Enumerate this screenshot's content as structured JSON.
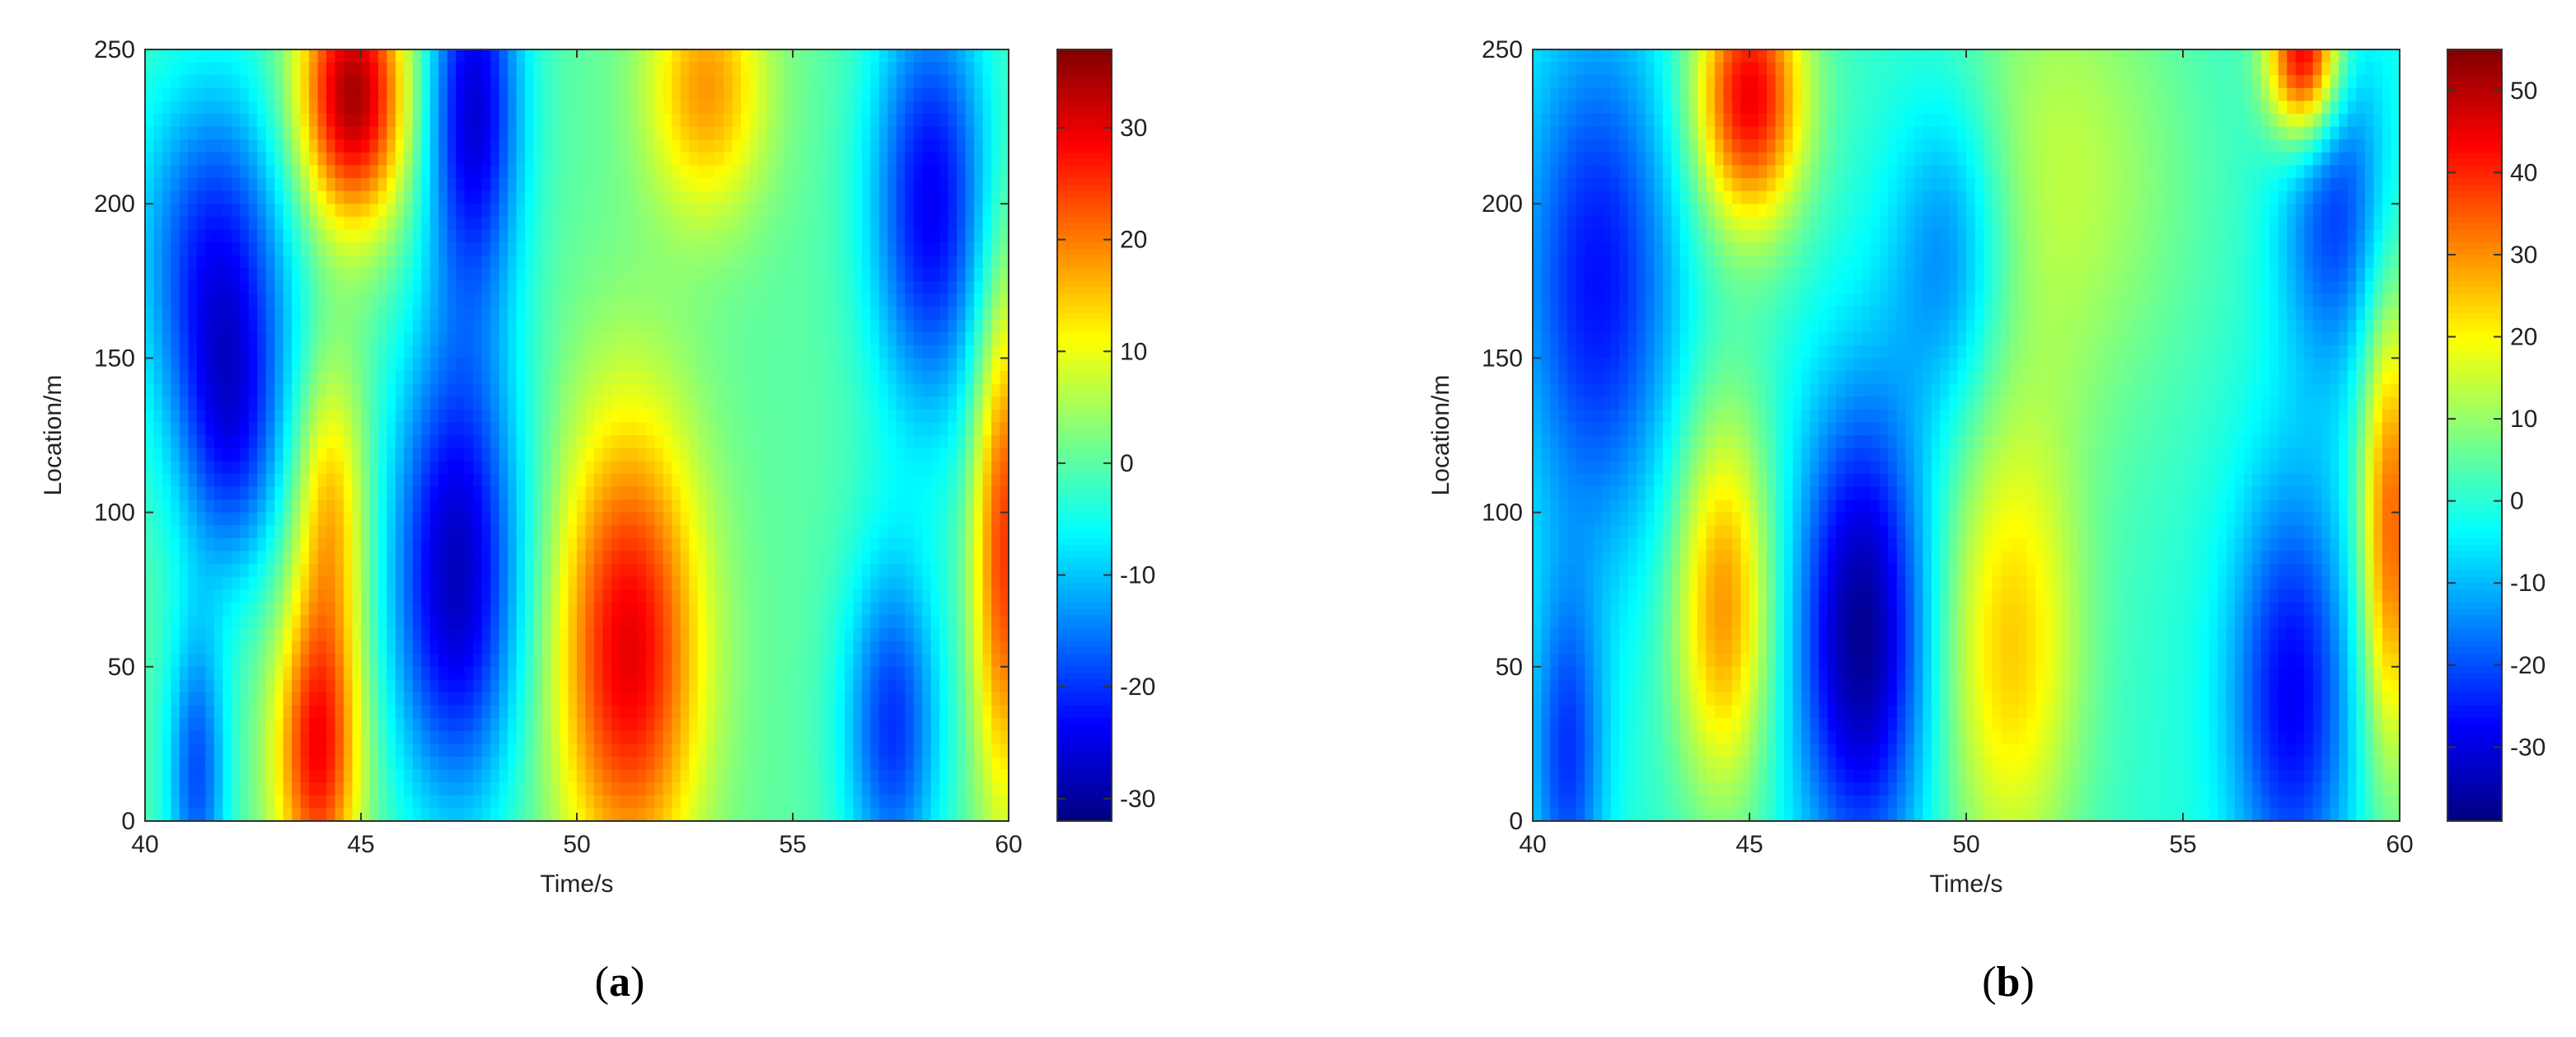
{
  "chart_data": [
    {
      "type": "heatmap",
      "panel_label": "a",
      "xlabel": "Time/s",
      "ylabel": "Location/m",
      "xlim": [
        40,
        60
      ],
      "ylim": [
        0,
        250
      ],
      "xticks": [
        "40",
        "45",
        "50",
        "55",
        "60"
      ],
      "yticks": [
        "0",
        "50",
        "100",
        "150",
        "200",
        "250"
      ],
      "colorbar": {
        "range": [
          -32,
          37
        ],
        "ticks": [
          "-30",
          "-20",
          "-10",
          "0",
          "10",
          "20",
          "30"
        ],
        "tick_values": [
          -30,
          -20,
          -10,
          0,
          10,
          20,
          30
        ],
        "colormap": "jet"
      },
      "blobs": [
        {
          "t": 44.8,
          "x": 235,
          "value": 35,
          "st": 0.9,
          "sx": 30
        },
        {
          "t": 53.0,
          "x": 238,
          "value": 18,
          "st": 1.0,
          "sx": 30
        },
        {
          "t": 47.6,
          "x": 232,
          "value": -26,
          "st": 0.8,
          "sx": 45
        },
        {
          "t": 41.6,
          "x": 185,
          "value": -20,
          "st": 1.3,
          "sx": 42
        },
        {
          "t": 42.0,
          "x": 125,
          "value": -18,
          "st": 0.9,
          "sx": 35
        },
        {
          "t": 44.0,
          "x": 22,
          "value": 28,
          "st": 0.7,
          "sx": 35
        },
        {
          "t": 44.3,
          "x": 100,
          "value": 16,
          "st": 0.6,
          "sx": 35
        },
        {
          "t": 47.2,
          "x": 80,
          "value": -28,
          "st": 1.1,
          "sx": 55
        },
        {
          "t": 51.2,
          "x": 55,
          "value": 30,
          "st": 1.2,
          "sx": 55
        },
        {
          "t": 58.2,
          "x": 200,
          "value": -24,
          "st": 1.0,
          "sx": 50
        },
        {
          "t": 57.3,
          "x": 30,
          "value": -20,
          "st": 0.8,
          "sx": 40
        },
        {
          "t": 59.9,
          "x": 90,
          "value": 25,
          "st": 0.5,
          "sx": 60
        },
        {
          "t": 41.2,
          "x": 15,
          "value": -18,
          "st": 0.5,
          "sx": 35
        }
      ]
    },
    {
      "type": "heatmap",
      "panel_label": "b",
      "xlabel": "Time/s",
      "ylabel": "Location/m",
      "xlim": [
        40,
        60
      ],
      "ylim": [
        0,
        250
      ],
      "xticks": [
        "40",
        "45",
        "50",
        "55",
        "60"
      ],
      "yticks": [
        "0",
        "50",
        "100",
        "150",
        "200",
        "250"
      ],
      "colorbar": {
        "range": [
          -39,
          55
        ],
        "ticks": [
          "-30",
          "-20",
          "-10",
          "0",
          "10",
          "20",
          "30",
          "40",
          "50"
        ],
        "tick_values": [
          -30,
          -20,
          -10,
          0,
          10,
          20,
          30,
          40,
          50
        ],
        "colormap": "jet"
      },
      "blobs": [
        {
          "t": 45.0,
          "x": 235,
          "value": 45,
          "st": 0.9,
          "sx": 30
        },
        {
          "t": 57.8,
          "x": 248,
          "value": 50,
          "st": 0.6,
          "sx": 20
        },
        {
          "t": 52.0,
          "x": 210,
          "value": 14,
          "st": 2.2,
          "sx": 60
        },
        {
          "t": 41.5,
          "x": 175,
          "value": -26,
          "st": 1.3,
          "sx": 60
        },
        {
          "t": 49.6,
          "x": 185,
          "value": -20,
          "st": 1.0,
          "sx": 40
        },
        {
          "t": 44.4,
          "x": 70,
          "value": 30,
          "st": 0.8,
          "sx": 45
        },
        {
          "t": 47.6,
          "x": 60,
          "value": -38,
          "st": 1.1,
          "sx": 55
        },
        {
          "t": 51.0,
          "x": 55,
          "value": 24,
          "st": 1.2,
          "sx": 55
        },
        {
          "t": 59.8,
          "x": 95,
          "value": 35,
          "st": 0.5,
          "sx": 55
        },
        {
          "t": 57.5,
          "x": 40,
          "value": -28,
          "st": 1.0,
          "sx": 50
        },
        {
          "t": 58.5,
          "x": 200,
          "value": -22,
          "st": 0.9,
          "sx": 40
        },
        {
          "t": 40.8,
          "x": 20,
          "value": -22,
          "st": 0.6,
          "sx": 40
        }
      ]
    }
  ]
}
